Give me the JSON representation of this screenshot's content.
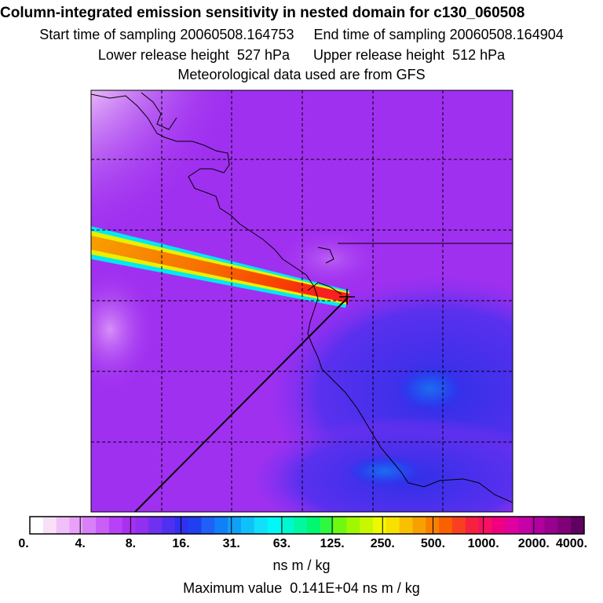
{
  "header": {
    "title": "Column-integrated emission sensitivity in nested domain for c130_060508",
    "start_label": "Start time of sampling 20060508.164753",
    "end_label": "End time of sampling 20060508.164904",
    "lower_label": "Lower release height  527 hPa",
    "upper_label": "Upper release height  512 hPa",
    "met_label": "Meteorological data used are from GFS"
  },
  "colorbar": {
    "tick_labels": [
      "0.",
      "4.",
      "8.",
      "16.",
      "31.",
      "63.",
      "125.",
      "250.",
      "500.",
      "1000.",
      "2000.",
      "4000."
    ],
    "colors": [
      "#ffffff",
      "#f8e0f8",
      "#f0c0f8",
      "#e8a0f8",
      "#d880f8",
      "#c860f8",
      "#b840f8",
      "#a830f0",
      "#9030f0",
      "#7030f0",
      "#5030f0",
      "#3030f0",
      "#2040f0",
      "#2060f8",
      "#1080f8",
      "#10a0f8",
      "#10c0f8",
      "#10e0f8",
      "#00f8f8",
      "#00f8d0",
      "#00f8a0",
      "#00f870",
      "#30f840",
      "#70f810",
      "#a0f800",
      "#c8f800",
      "#f0f800",
      "#f8e000",
      "#f8c000",
      "#f8a000",
      "#f88000",
      "#f86000",
      "#f84020",
      "#f82040",
      "#f81060",
      "#f00080",
      "#e000a0",
      "#c800a8",
      "#b000a0",
      "#980090",
      "#800078",
      "#600060"
    ],
    "units": "ns m / kg",
    "max_label": "Maximum value  0.141E+04 ns m / kg"
  },
  "map": {
    "background_color": "#a030f0",
    "plume_colors": [
      "#00f8f8",
      "#f8f000",
      "#f88000",
      "#f82020"
    ],
    "receptor_marker": "plus-sign"
  }
}
